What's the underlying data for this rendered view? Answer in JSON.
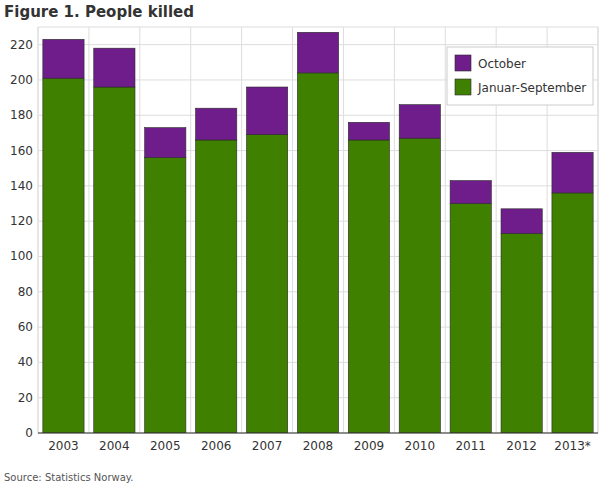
{
  "chart_data": {
    "type": "bar",
    "title": "Figure 1. People killed",
    "source": "Source: Statistics Norway.",
    "categories": [
      "2003",
      "2004",
      "2005",
      "2006",
      "2007",
      "2008",
      "2009",
      "2010",
      "2011",
      "2012",
      "2013*"
    ],
    "series": [
      {
        "name": "Januar-September",
        "color": "#3f8000",
        "values": [
          201,
          196,
          156,
          166,
          169,
          204,
          166,
          167,
          130,
          113,
          136
        ]
      },
      {
        "name": "October",
        "color": "#6e1d8a",
        "values": [
          22,
          22,
          17,
          18,
          27,
          23,
          10,
          19,
          13,
          14,
          23
        ]
      }
    ],
    "stacked": true,
    "ylim": [
      0,
      230
    ],
    "yticks": [
      0,
      20,
      40,
      60,
      80,
      100,
      120,
      140,
      160,
      180,
      200,
      220
    ],
    "grid": true,
    "legend": "top-right"
  }
}
